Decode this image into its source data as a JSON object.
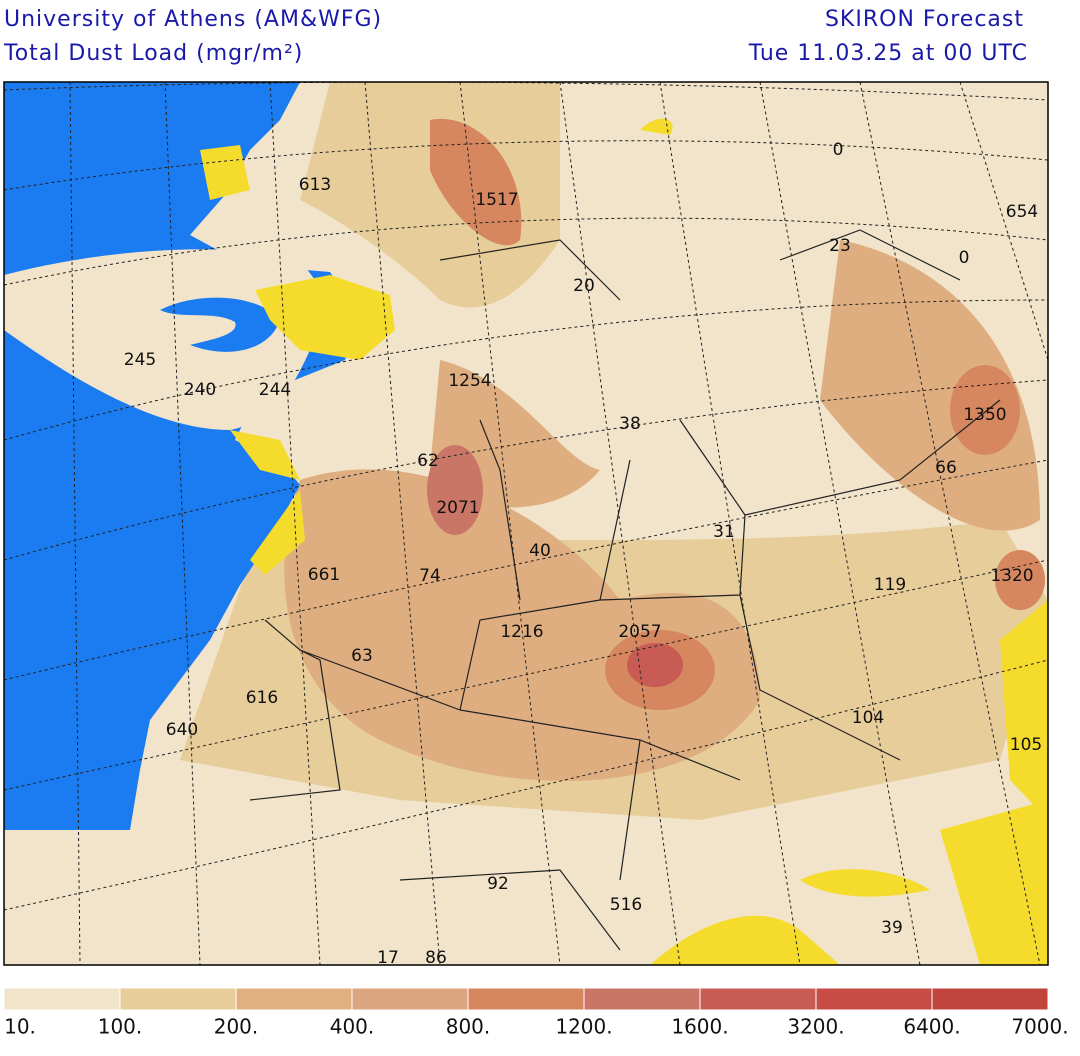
{
  "header": {
    "source": "University of Athens (AM&WFG)",
    "product": "Total Dust Load (mgr/m²)",
    "model": "SKIRON Forecast",
    "time": "Tue 11.03.25 at 00 UTC"
  },
  "map_labels": [
    613,
    1517,
    0,
    654,
    23,
    0,
    20,
    245,
    240,
    244,
    1254,
    38,
    1350,
    66,
    62,
    2071,
    31,
    40,
    661,
    74,
    119,
    1320,
    1216,
    2057,
    63,
    616,
    640,
    104,
    105,
    92,
    516,
    39,
    17,
    86
  ],
  "colorbar": {
    "labels": [
      "10.",
      "100.",
      "200.",
      "400.",
      "800.",
      "1200.",
      "1600.",
      "3200.",
      "6400.",
      "7000."
    ],
    "colors": [
      "#f1e4cb",
      "#e7cd9a",
      "#e1b080",
      "#dba57f",
      "#d6875f",
      "#ca7666",
      "#c85c55",
      "#c84c46",
      "#bf453d"
    ]
  }
}
